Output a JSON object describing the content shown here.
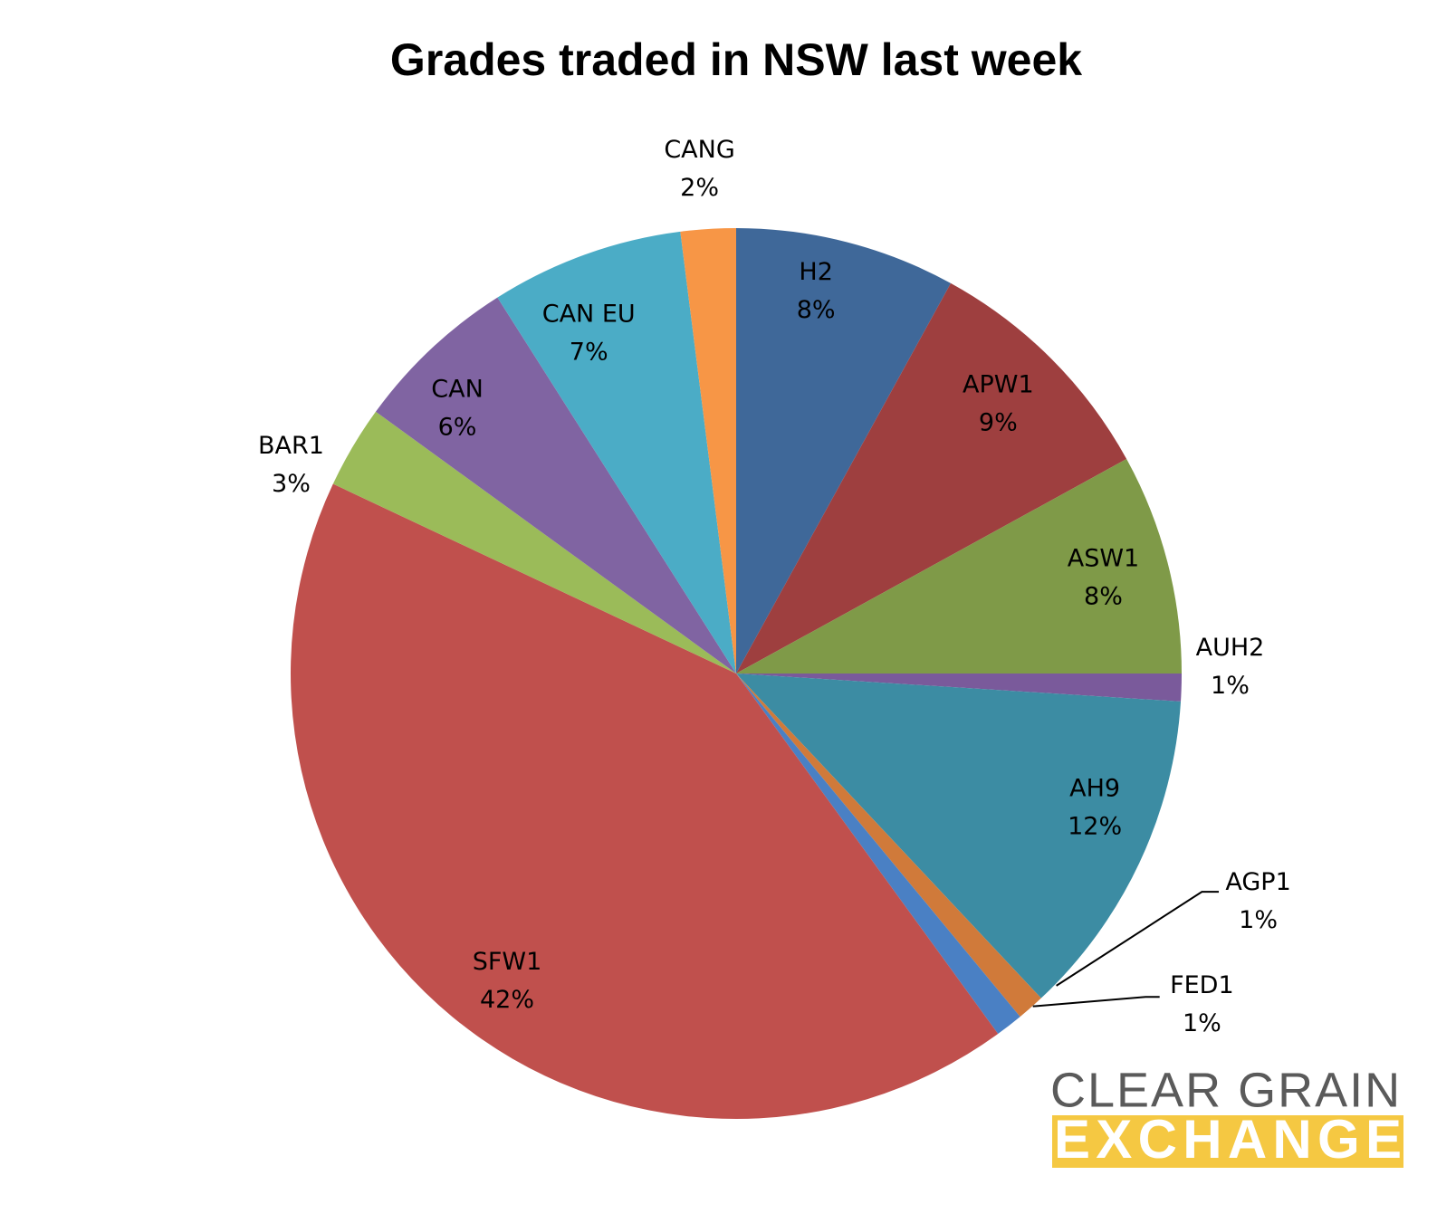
{
  "chart_data": {
    "type": "pie",
    "title": "Grades traded in NSW last week",
    "categories": [
      "H2",
      "APW1",
      "ASW1",
      "AUH2",
      "AH9",
      "AGP1",
      "FED1",
      "SFW1",
      "BAR1",
      "CAN",
      "CAN EU",
      "CANG"
    ],
    "values": [
      8,
      9,
      8,
      1,
      12,
      1,
      1,
      42,
      3,
      6,
      7,
      2
    ],
    "value_labels": [
      "8%",
      "9%",
      "8%",
      "1%",
      "12%",
      "1%",
      "1%",
      "42%",
      "3%",
      "6%",
      "7%",
      "2%"
    ],
    "colors": [
      "#3f6899",
      "#9e3f3f",
      "#7f9a48",
      "#7a5a9b",
      "#3c8ca3",
      "#d07a3a",
      "#4a80c4",
      "#c0504d",
      "#9bbb59",
      "#8064a2",
      "#4bacc6",
      "#f79646"
    ]
  },
  "logo": {
    "line1": "CLEAR GRAIN",
    "line2": "EXCHANGE"
  }
}
